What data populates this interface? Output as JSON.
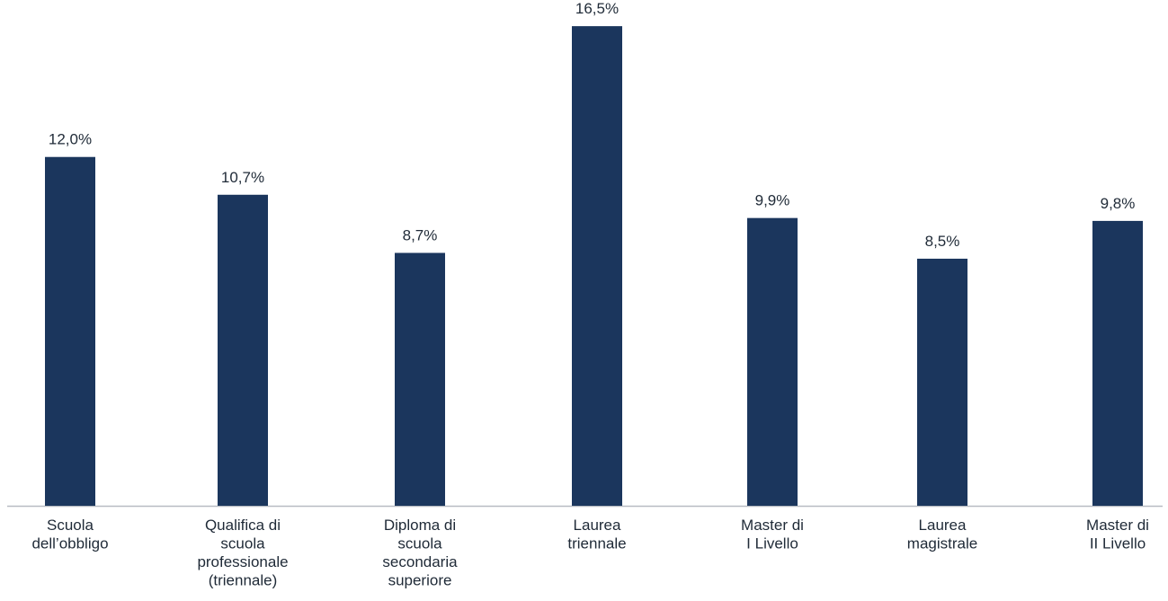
{
  "colors": {
    "bar": "#1b365d",
    "axis": "#b8bcc2",
    "text": "#1f2a37",
    "background": "#ffffff"
  },
  "chart_data": {
    "type": "bar",
    "title": "",
    "xlabel": "",
    "ylabel": "",
    "ylim": [
      0,
      17.4
    ],
    "grid": false,
    "legend": "none",
    "categories": [
      "Scuola dell’obbligo",
      "Qualifica di scuola professionale (triennale)",
      "Diploma di scuola secondaria superiore",
      "Laurea triennale",
      "Master di I Livello",
      "Laurea magistrale",
      "Master di II Livello"
    ],
    "category_label_lines": [
      [
        "Scuola",
        "dell’obbligo"
      ],
      [
        "Qualifica di",
        "scuola",
        "professionale",
        "(triennale)"
      ],
      [
        "Diploma di",
        "scuola",
        "secondaria",
        "superiore"
      ],
      [
        "Laurea",
        "triennale"
      ],
      [
        "Master di",
        "I Livello"
      ],
      [
        "Laurea",
        "magistrale"
      ],
      [
        "Master di",
        "II Livello"
      ]
    ],
    "values": [
      12.0,
      10.7,
      8.7,
      16.5,
      9.9,
      8.5,
      9.8
    ],
    "value_labels": [
      "12,0%",
      "10,7%",
      "8,7%",
      "16,5%",
      "9,9%",
      "8,5%",
      "9,8%"
    ]
  }
}
